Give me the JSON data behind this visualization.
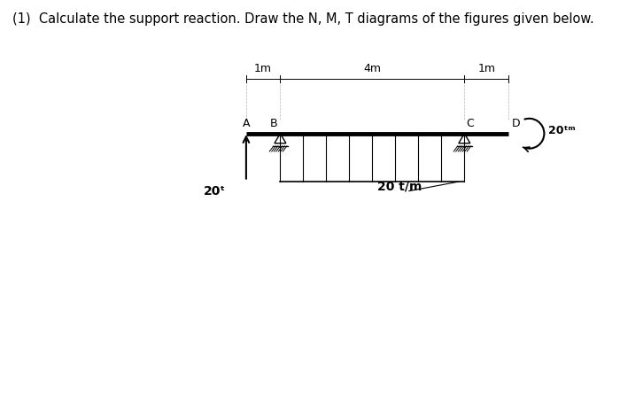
{
  "title": "(1)  Calculate the support reaction. Draw the N, M, T diagrams of the figures given below.",
  "title_fontsize": 10.5,
  "bg_color": "#ffffff",
  "beam_color": "#000000",
  "text_color": "#000000",
  "beam_linewidth": 3.5,
  "point_load_label": "20ᵗ",
  "dist_load_label": "20 t/m",
  "moment_label": "20ᵗᵐ",
  "labels": [
    "A",
    "B",
    "C",
    "D"
  ],
  "dim_labels": [
    "1m",
    "4m",
    "1m"
  ],
  "n_dist_arrows": 9
}
